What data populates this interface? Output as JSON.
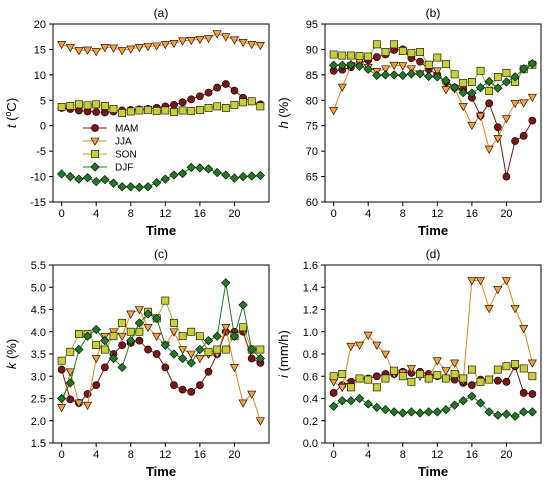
{
  "chart_data": [
    {
      "type": "line",
      "title": "(a)",
      "xlabel": "Time",
      "ylabel": "t (°C)",
      "ylabel_parts": {
        "main": "t",
        "open": " (",
        "sup": "o",
        "unit": "C)"
      },
      "xlim": [
        -1,
        24
      ],
      "ylim": [
        -15,
        20
      ],
      "xticks": [
        0,
        4,
        8,
        12,
        16,
        20
      ],
      "yticks": [
        -15,
        -10,
        -5,
        0,
        5,
        10,
        15,
        20
      ],
      "legend": {
        "placement": "center-left",
        "entries": [
          "MAM",
          "JJA",
          "SON",
          "DJF"
        ]
      },
      "x": [
        0,
        1,
        2,
        3,
        4,
        5,
        6,
        7,
        8,
        9,
        10,
        11,
        12,
        13,
        14,
        15,
        16,
        17,
        18,
        19,
        20,
        21,
        22,
        23
      ],
      "series": [
        {
          "name": "MAM",
          "values": [
            3.5,
            3.3,
            3.0,
            2.8,
            2.7,
            2.6,
            2.8,
            3.0,
            3.1,
            3.2,
            3.3,
            3.5,
            3.8,
            4.1,
            4.6,
            5.2,
            5.8,
            6.5,
            7.5,
            8.2,
            6.9,
            5.5,
            4.8,
            4.2
          ]
        },
        {
          "name": "JJA",
          "values": [
            16.0,
            15.4,
            14.8,
            14.9,
            14.6,
            15.4,
            15.3,
            14.8,
            15.1,
            15.4,
            15.6,
            15.7,
            16.0,
            16.2,
            16.7,
            16.8,
            17.0,
            17.2,
            18.1,
            17.5,
            16.9,
            16.4,
            16.0,
            15.8
          ]
        },
        {
          "name": "SON",
          "values": [
            3.7,
            3.9,
            4.2,
            4.0,
            4.2,
            3.9,
            3.3,
            2.5,
            2.8,
            3.0,
            3.1,
            2.9,
            3.0,
            2.7,
            3.0,
            2.9,
            3.1,
            3.5,
            3.8,
            3.5,
            4.1,
            4.6,
            4.8,
            3.8
          ]
        },
        {
          "name": "DJF",
          "values": [
            -9.5,
            -10.0,
            -10.5,
            -10.2,
            -11.0,
            -10.6,
            -11.3,
            -12.0,
            -12.0,
            -12.1,
            -12.0,
            -11.2,
            -10.5,
            -9.7,
            -9.4,
            -8.2,
            -8.3,
            -8.5,
            -9.2,
            -9.7,
            -10.3,
            -10.0,
            -9.9,
            -9.8
          ]
        }
      ]
    },
    {
      "type": "line",
      "title": "(b)",
      "xlabel": "Time",
      "ylabel": "h (%)",
      "ylabel_parts": {
        "main": "h",
        "open": " (",
        "sup": "",
        "unit": "%)"
      },
      "xlim": [
        -1,
        24
      ],
      "ylim": [
        60,
        95
      ],
      "xticks": [
        0,
        4,
        8,
        12,
        16,
        20
      ],
      "yticks": [
        60,
        65,
        70,
        75,
        80,
        85,
        90,
        95
      ],
      "x": [
        0,
        1,
        2,
        3,
        4,
        5,
        6,
        7,
        8,
        9,
        10,
        11,
        12,
        13,
        14,
        15,
        16,
        17,
        18,
        19,
        20,
        21,
        22,
        23
      ],
      "series": [
        {
          "name": "MAM",
          "values": [
            85.8,
            86.0,
            86.5,
            87.3,
            87.9,
            88.5,
            89.0,
            89.9,
            90.0,
            88.3,
            87.6,
            86.1,
            85.0,
            83.5,
            82.5,
            82.2,
            80.5,
            77.0,
            79.4,
            74.7,
            65.0,
            72.0,
            73.0,
            76.0
          ]
        },
        {
          "name": "JJA",
          "values": [
            78.0,
            82.6,
            86.8,
            87.6,
            86.5,
            85.7,
            86.2,
            86.9,
            86.8,
            86.2,
            85.2,
            86.8,
            85.8,
            82.1,
            82.3,
            78.8,
            75.1,
            76.9,
            70.4,
            72.5,
            76.4,
            79.4,
            79.5,
            80.6
          ]
        },
        {
          "name": "SON",
          "values": [
            89.0,
            88.8,
            88.8,
            88.7,
            88.6,
            91.0,
            89.5,
            91.0,
            89.7,
            89.3,
            89.5,
            87.0,
            88.4,
            87.1,
            85.1,
            83.4,
            83.6,
            85.8,
            81.8,
            84.6,
            85.4,
            83.6,
            86.1,
            87.0
          ]
        },
        {
          "name": "DJF",
          "values": [
            86.9,
            86.9,
            87.0,
            86.7,
            86.1,
            84.9,
            85.0,
            85.0,
            84.9,
            85.2,
            85.2,
            84.7,
            84.6,
            83.9,
            82.5,
            81.5,
            81.4,
            82.5,
            83.7,
            82.4,
            83.6,
            84.6,
            86.2,
            87.2
          ]
        }
      ]
    },
    {
      "type": "line",
      "title": "(c)",
      "xlabel": "Time",
      "ylabel": "k (%)",
      "ylabel_parts": {
        "main": "k",
        "open": " (",
        "sup": "",
        "unit": "%)"
      },
      "xlim": [
        -1,
        24
      ],
      "ylim": [
        1.5,
        5.5
      ],
      "xticks": [
        0,
        4,
        8,
        12,
        16,
        20
      ],
      "yticks": [
        1.5,
        2.0,
        2.5,
        3.0,
        3.5,
        4.0,
        4.5,
        5.0,
        5.5
      ],
      "x": [
        0,
        1,
        2,
        3,
        4,
        5,
        6,
        7,
        8,
        9,
        10,
        11,
        12,
        13,
        14,
        15,
        16,
        17,
        18,
        19,
        20,
        21,
        22,
        23
      ],
      "series": [
        {
          "name": "MAM",
          "values": [
            3.15,
            2.48,
            2.4,
            2.6,
            2.8,
            3.2,
            3.5,
            3.7,
            3.75,
            3.8,
            3.6,
            3.5,
            3.2,
            2.8,
            2.7,
            2.65,
            2.8,
            3.1,
            3.5,
            4.0,
            4.0,
            4.0,
            3.4,
            3.3
          ]
        },
        {
          "name": "JJA",
          "values": [
            2.3,
            3.1,
            2.4,
            2.35,
            3.4,
            3.9,
            4.0,
            3.9,
            4.4,
            4.5,
            4.1,
            3.9,
            3.7,
            4.0,
            3.6,
            3.5,
            3.4,
            3.5,
            3.5,
            4.1,
            3.2,
            2.4,
            2.6,
            2.0
          ]
        },
        {
          "name": "SON",
          "values": [
            3.35,
            3.55,
            3.95,
            3.95,
            3.7,
            3.6,
            3.9,
            4.2,
            4.0,
            4.0,
            4.45,
            4.3,
            4.7,
            4.2,
            3.9,
            4.0,
            3.9,
            3.55,
            3.6,
            3.6,
            3.9,
            4.1,
            3.6,
            3.6
          ]
        },
        {
          "name": "DJF",
          "values": [
            2.5,
            2.85,
            3.6,
            3.9,
            4.05,
            3.8,
            3.4,
            3.2,
            3.8,
            4.2,
            4.4,
            4.3,
            3.7,
            3.5,
            3.4,
            3.3,
            3.6,
            3.8,
            3.9,
            5.1,
            3.9,
            4.6,
            3.6,
            3.4
          ]
        }
      ]
    },
    {
      "type": "line",
      "title": "(d)",
      "xlabel": "Time",
      "ylabel": "i (mm/h)",
      "ylabel_parts": {
        "main": "i",
        "open": " (",
        "sup": "",
        "unit": "mm/h)"
      },
      "xlim": [
        -1,
        24
      ],
      "ylim": [
        0.0,
        1.6
      ],
      "xticks": [
        0,
        4,
        8,
        12,
        16,
        20
      ],
      "yticks": [
        0.0,
        0.2,
        0.4,
        0.6,
        0.8,
        1.0,
        1.2,
        1.4,
        1.6
      ],
      "x": [
        0,
        1,
        2,
        3,
        4,
        5,
        6,
        7,
        8,
        9,
        10,
        11,
        12,
        13,
        14,
        15,
        16,
        17,
        18,
        19,
        20,
        21,
        22,
        23
      ],
      "series": [
        {
          "name": "MAM",
          "values": [
            0.45,
            0.52,
            0.55,
            0.58,
            0.58,
            0.6,
            0.62,
            0.62,
            0.64,
            0.63,
            0.64,
            0.62,
            0.6,
            0.58,
            0.57,
            0.54,
            0.52,
            0.57,
            0.57,
            0.56,
            0.55,
            0.69,
            0.45,
            0.44
          ]
        },
        {
          "name": "JJA",
          "values": [
            0.55,
            0.5,
            0.87,
            0.88,
            0.97,
            0.88,
            0.8,
            0.62,
            0.63,
            0.67,
            0.6,
            0.58,
            0.74,
            0.65,
            0.72,
            0.56,
            1.46,
            1.46,
            1.21,
            1.38,
            1.46,
            1.21,
            1.03,
            0.72
          ]
        },
        {
          "name": "SON",
          "values": [
            0.6,
            0.62,
            0.5,
            0.58,
            0.57,
            0.5,
            0.58,
            0.65,
            0.6,
            0.55,
            0.62,
            0.58,
            0.61,
            0.58,
            0.62,
            0.58,
            0.66,
            0.55,
            0.57,
            0.66,
            0.69,
            0.71,
            0.67,
            0.6
          ]
        },
        {
          "name": "DJF",
          "values": [
            0.33,
            0.38,
            0.38,
            0.4,
            0.35,
            0.32,
            0.3,
            0.28,
            0.27,
            0.28,
            0.27,
            0.28,
            0.28,
            0.3,
            0.34,
            0.38,
            0.42,
            0.36,
            0.28,
            0.25,
            0.26,
            0.24,
            0.28,
            0.28
          ]
        }
      ]
    }
  ],
  "colors": {
    "MAM": {
      "fill": "#7a1518",
      "stroke": "#7a1518",
      "marker": "circle"
    },
    "JJA": {
      "fill": "#f6a03c",
      "stroke": "#e8821a",
      "marker": "triangle-down"
    },
    "SON": {
      "fill": "#c8cf35",
      "stroke": "#a8b020",
      "marker": "square"
    },
    "DJF": {
      "fill": "#1f7a23",
      "stroke": "#1f7a23",
      "marker": "diamond"
    }
  }
}
